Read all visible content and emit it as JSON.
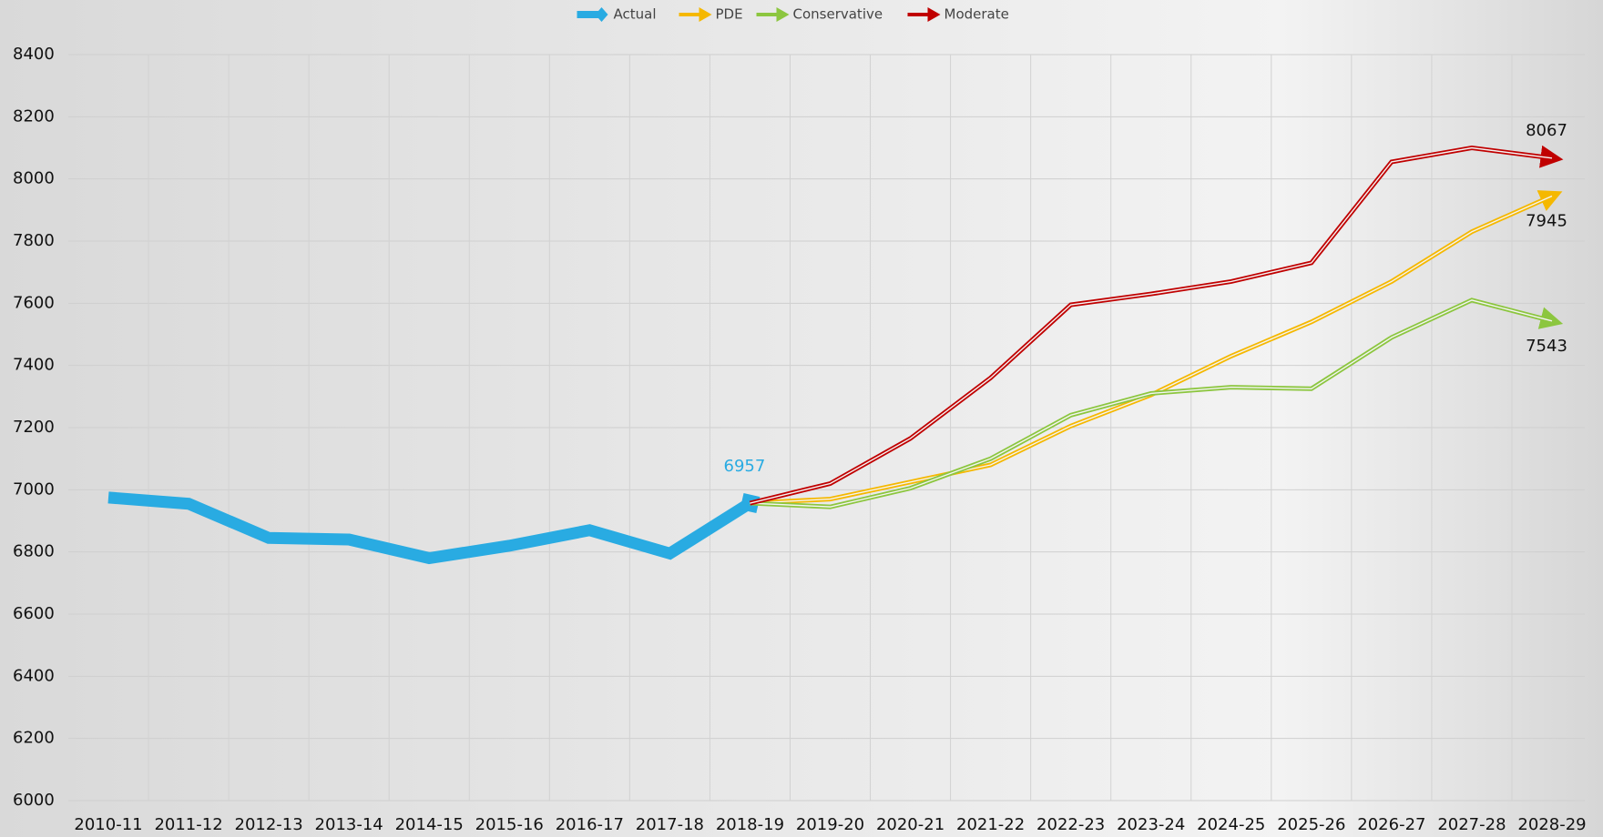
{
  "chart_data": {
    "type": "line",
    "categories": [
      "2010-11",
      "2011-12",
      "2012-13",
      "2013-14",
      "2014-15",
      "2015-16",
      "2016-17",
      "2017-18",
      "2018-19",
      "2019-20",
      "2020-21",
      "2021-22",
      "2022-23",
      "2023-24",
      "2024-25",
      "2025-26",
      "2026-27",
      "2027-28",
      "2028-29"
    ],
    "series": [
      {
        "name": "Actual",
        "color": "#29abe2",
        "values": [
          6975,
          6955,
          6845,
          6840,
          6780,
          6820,
          6870,
          6795,
          6957,
          null,
          null,
          null,
          null,
          null,
          null,
          null,
          null,
          null,
          null
        ]
      },
      {
        "name": "PDE",
        "color": "#f5b800",
        "values": [
          null,
          null,
          null,
          null,
          null,
          null,
          null,
          null,
          6957,
          6970,
          7025,
          7080,
          7205,
          7305,
          7430,
          7540,
          7670,
          7830,
          7945
        ]
      },
      {
        "name": "Conservative",
        "color": "#8cc63f",
        "values": [
          null,
          null,
          null,
          null,
          null,
          null,
          null,
          null,
          6957,
          6945,
          7005,
          7100,
          7240,
          7310,
          7330,
          7325,
          7490,
          7610,
          7543
        ]
      },
      {
        "name": "Moderate",
        "color": "#c00000",
        "values": [
          null,
          null,
          null,
          null,
          null,
          null,
          null,
          null,
          6957,
          7020,
          7165,
          7360,
          7595,
          7630,
          7670,
          7730,
          8055,
          8100,
          8067
        ]
      }
    ],
    "ylim": [
      6000,
      8400
    ],
    "yticks": [
      6000,
      6200,
      6400,
      6600,
      6800,
      7000,
      7200,
      7400,
      7600,
      7800,
      8000,
      8200,
      8400
    ],
    "grid": true,
    "legend": "top"
  }
}
